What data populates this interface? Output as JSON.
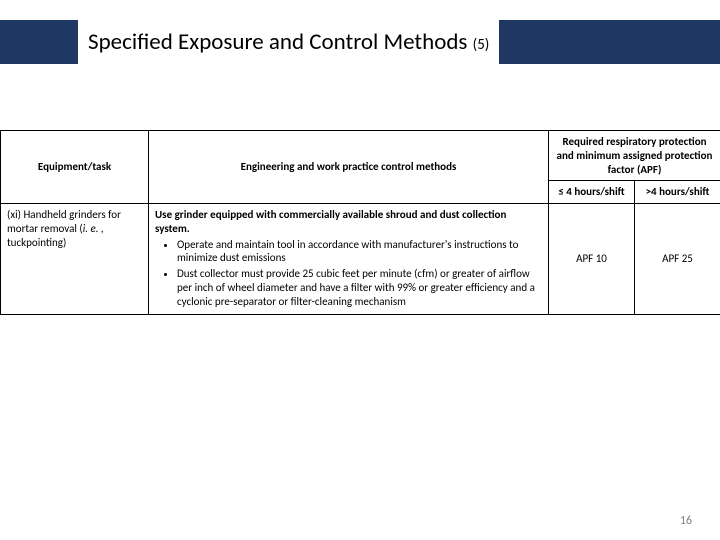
{
  "title": {
    "main": "Specified Exposure and Control Methods ",
    "sub": "(5)"
  },
  "table": {
    "headers": {
      "equipment": "Equipment/task",
      "engineering": "Engineering and work practice control methods",
      "resp_top": "Required respiratory protection and minimum assigned protection factor (APF)",
      "resp_le4": "≤ 4 hours/shift",
      "resp_gt4": ">4 hours/shift"
    },
    "row": {
      "equipment_prefix": "(xi) Handheld grinders for mortar removal (",
      "equipment_ie": "i. e. ,",
      "equipment_suffix": " tuckpointing)",
      "eng_lead": "Use grinder equipped with commercially available shroud and dust collection system.",
      "eng_b1": "Operate and maintain tool in accordance with manufacturer's instructions to minimize dust emissions",
      "eng_b2": "Dust collector must provide 25 cubic feet per minute (cfm) or greater of airflow per inch of wheel diameter and have a filter with 99% or greater efficiency and a cyclonic pre-separator or filter-cleaning mechanism",
      "apf_le4": "APF 10",
      "apf_gt4": "APF 25"
    }
  },
  "page_number": "16",
  "colors": {
    "bar": "#1f3864",
    "border": "#000000",
    "page_num": "#808080",
    "background": "#ffffff"
  }
}
